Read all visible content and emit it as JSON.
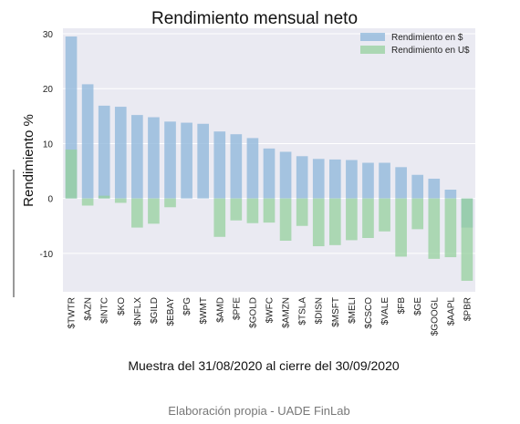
{
  "chart_data": {
    "type": "bar",
    "title": "Rendimiento mensual neto",
    "ylabel": "Rendimiento %",
    "xlabel": "Muestra del 31/08/2020 al cierre del 30/09/2020",
    "caption": "Elaboración propia - UADE FinLab",
    "ylim": [
      -17,
      31
    ],
    "yticks": [
      30,
      20,
      10,
      0,
      -10
    ],
    "grid": true,
    "legend_position": "top-right",
    "categories": [
      "$TWTR",
      "$AZN",
      "$INTC",
      "$KO",
      "$NFLX",
      "$GILD",
      "$EBAY",
      "$PG",
      "$WMT",
      "$AMD",
      "$PFE",
      "$GOLD",
      "$WFC",
      "$AMZN",
      "$TSLA",
      "$DISN",
      "$MSFT",
      "$MELI",
      "$CSCO",
      "$VALE",
      "$FB",
      "$GE",
      "$GOOGL",
      "$AAPL",
      "$PBR"
    ],
    "series": [
      {
        "name": "Rendimiento en $",
        "color": "#8cb6da",
        "values": [
          29.5,
          20.8,
          16.9,
          16.7,
          15.2,
          14.8,
          14.0,
          13.8,
          13.6,
          12.2,
          11.7,
          11.0,
          9.1,
          8.5,
          7.7,
          7.2,
          7.1,
          7.0,
          6.5,
          6.5,
          5.7,
          4.3,
          3.6,
          1.6,
          -5.3
        ]
      },
      {
        "name": "Rendimiento en U$",
        "color": "#96d09e",
        "values": [
          8.9,
          -1.3,
          0.5,
          -0.8,
          -5.3,
          -4.6,
          -1.6,
          0.0,
          0.0,
          -7.0,
          -4.0,
          -4.5,
          -4.4,
          -7.7,
          -5.0,
          -8.7,
          -8.5,
          -7.6,
          -7.2,
          -6.0,
          -10.6,
          -5.6,
          -11.0,
          -10.7,
          -15.0
        ]
      }
    ]
  }
}
